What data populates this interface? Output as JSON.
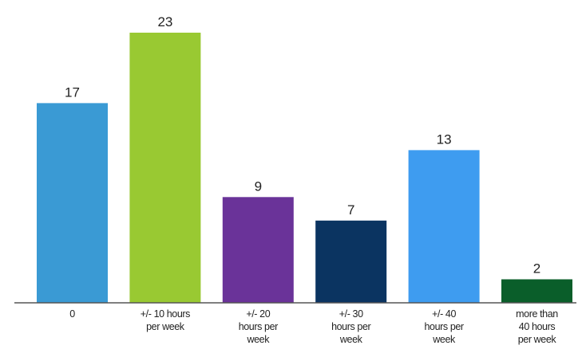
{
  "chart_data": {
    "type": "bar",
    "title": "",
    "xlabel": "",
    "ylabel": "",
    "categories": [
      [
        "0"
      ],
      [
        "+/- 10 hours",
        "per week"
      ],
      [
        "+/- 20",
        "hours per",
        "week"
      ],
      [
        "+/- 30",
        "hours per",
        "week"
      ],
      [
        "+/- 40",
        "hours per",
        "week"
      ],
      [
        "more than",
        "40 hours",
        "per week"
      ]
    ],
    "values": [
      17,
      23,
      9,
      7,
      13,
      2
    ],
    "value_labels": [
      "17",
      "23",
      "9",
      "7",
      "13",
      "2"
    ],
    "colors": [
      "#3a9ad4",
      "#99c932",
      "#6a3399",
      "#0b3461",
      "#3e9cf0",
      "#0a5e2a"
    ],
    "ylim": [
      0,
      23
    ],
    "grid": false,
    "legend": "none"
  }
}
